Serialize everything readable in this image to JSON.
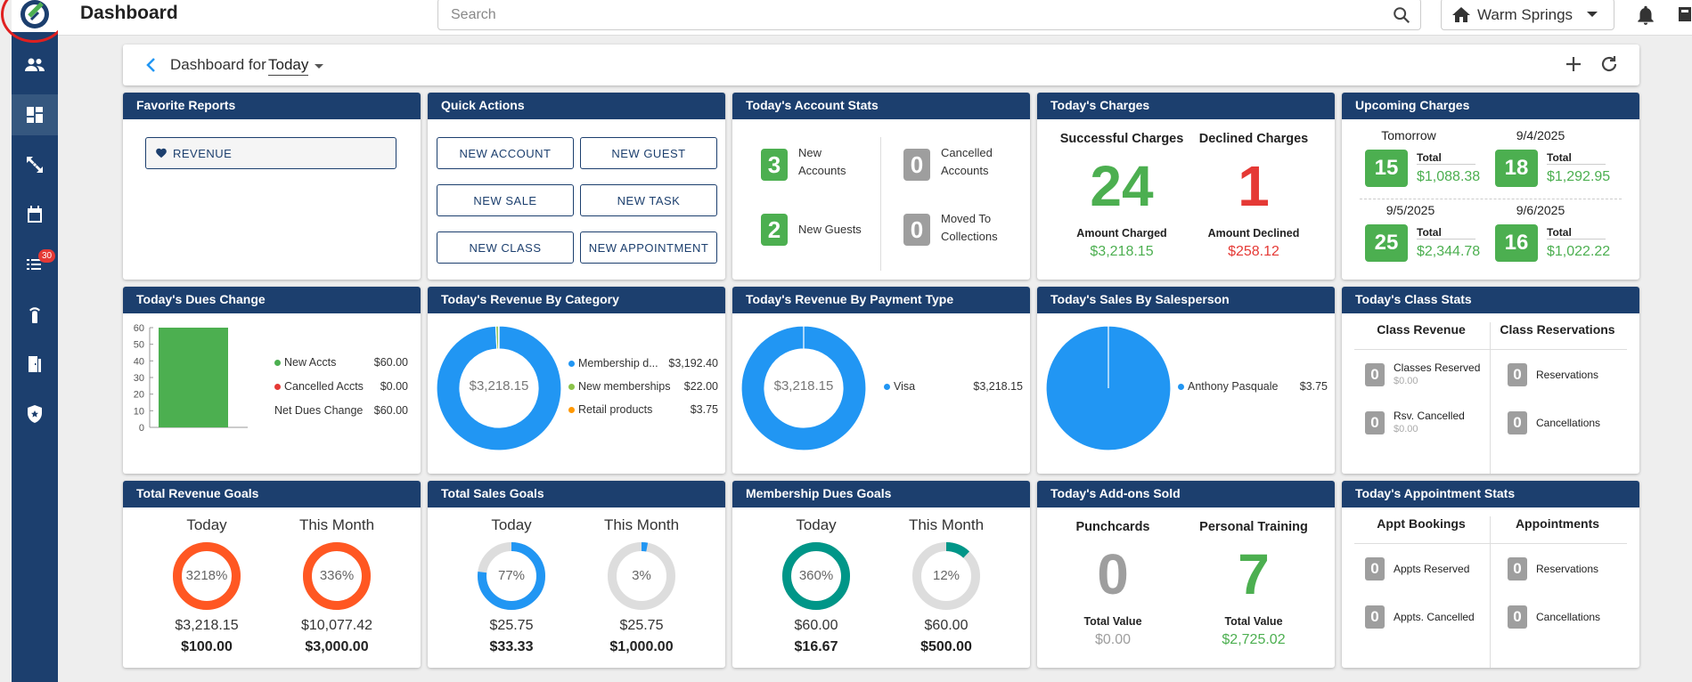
{
  "app": {
    "title": "Dashboard"
  },
  "search": {
    "placeholder": "Search"
  },
  "location": {
    "value": "Warm Springs"
  },
  "sidebar": {
    "badge": "30"
  },
  "subbar": {
    "prefix": "Dashboard for",
    "period": "Today"
  },
  "favorite_reports": {
    "title": "Favorite Reports",
    "items": [
      "REVENUE"
    ]
  },
  "quick_actions": {
    "title": "Quick Actions",
    "buttons": [
      "NEW ACCOUNT",
      "NEW GUEST",
      "NEW SALE",
      "NEW TASK",
      "NEW CLASS",
      "NEW APPOINTMENT"
    ]
  },
  "account_stats": {
    "title": "Today's Account Stats",
    "new_accounts": {
      "value": "3",
      "label1": "New",
      "label2": "Accounts"
    },
    "new_guests": {
      "value": "2",
      "label": "New Guests"
    },
    "cancelled": {
      "value": "0",
      "label1": "Cancelled",
      "label2": "Accounts"
    },
    "collections": {
      "value": "0",
      "label1": "Moved To",
      "label2": "Collections"
    }
  },
  "charges": {
    "title": "Today's Charges",
    "successful": {
      "label": "Successful Charges",
      "count": "24",
      "amount_label": "Amount Charged",
      "amount": "$3,218.15"
    },
    "declined": {
      "label": "Declined Charges",
      "count": "1",
      "amount_label": "Amount Declined",
      "amount": "$258.12"
    }
  },
  "upcoming": {
    "title": "Upcoming Charges",
    "items": [
      {
        "date": "Tomorrow",
        "count": "15",
        "total_label": "Total",
        "total": "$1,088.38"
      },
      {
        "date": "9/4/2025",
        "count": "18",
        "total_label": "Total",
        "total": "$1,292.95"
      },
      {
        "date": "9/5/2025",
        "count": "25",
        "total_label": "Total",
        "total": "$2,344.78"
      },
      {
        "date": "9/6/2025",
        "count": "16",
        "total_label": "Total",
        "total": "$1,022.22"
      }
    ]
  },
  "dues_change": {
    "title": "Today's Dues Change",
    "legend": [
      {
        "label": "New Accts",
        "value": "$60.00",
        "color": "#4caf50"
      },
      {
        "label": "Cancelled Accts",
        "value": "$0.00",
        "color": "#e53935"
      },
      {
        "label": "Net Dues Change",
        "value": "$60.00"
      }
    ]
  },
  "chart_data": [
    {
      "type": "bar",
      "categories": [
        "Net Dues Change"
      ],
      "values": [
        60
      ],
      "title": "Today's Dues Change",
      "xlabel": "",
      "ylabel": "",
      "ylim": [
        0,
        60
      ],
      "yticks": [
        "60",
        "50",
        "40",
        "30",
        "20",
        "10",
        "0"
      ],
      "color": "#4caf50"
    },
    {
      "type": "pie",
      "title": "Today's Revenue By Category",
      "center_label": "$3,218.15",
      "categories": [
        "Membership d...",
        "New memberships",
        "Retail products"
      ],
      "values": [
        3192.4,
        22.0,
        3.75
      ],
      "value_labels": [
        "$3,192.40",
        "$22.00",
        "$3.75"
      ],
      "colors": [
        "#2196f3",
        "#8bc34a",
        "#ff9800"
      ]
    },
    {
      "type": "pie",
      "title": "Today's Revenue By Payment Type",
      "center_label": "$3,218.15",
      "categories": [
        "Visa"
      ],
      "values": [
        3218.15
      ],
      "value_labels": [
        "$3,218.15"
      ],
      "colors": [
        "#2196f3"
      ]
    },
    {
      "type": "pie",
      "title": "Today's Sales By Salesperson",
      "categories": [
        "Anthony Pasquale"
      ],
      "values": [
        3.75
      ],
      "value_labels": [
        "$3.75"
      ],
      "colors": [
        "#2196f3"
      ]
    }
  ],
  "revenue_category": {
    "title": "Today's Revenue By Category"
  },
  "revenue_payment": {
    "title": "Today's Revenue By Payment Type"
  },
  "sales_person": {
    "title": "Today's Sales By Salesperson"
  },
  "class_stats": {
    "title": "Today's Class Stats",
    "col1": "Class Revenue",
    "col2": "Class Reservations",
    "reserved": {
      "value": "0",
      "label": "Classes Reserved",
      "amount": "$0.00"
    },
    "rsv_cancelled": {
      "value": "0",
      "label": "Rsv. Cancelled",
      "amount": "$0.00"
    },
    "reservations": {
      "value": "0",
      "label": "Reservations"
    },
    "cancellations": {
      "value": "0",
      "label": "Cancellations"
    }
  },
  "revenue_goals": {
    "title": "Total Revenue Goals",
    "today": {
      "label": "Today",
      "pct": "3218%",
      "fraction": 1.0,
      "amount": "$3,218.15",
      "target": "$100.00",
      "color": "#ff5722"
    },
    "month": {
      "label": "This Month",
      "pct": "336%",
      "fraction": 1.0,
      "amount": "$10,077.42",
      "target": "$3,000.00",
      "color": "#ff5722"
    }
  },
  "sales_goals": {
    "title": "Total Sales Goals",
    "today": {
      "label": "Today",
      "pct": "77%",
      "fraction": 0.77,
      "amount": "$25.75",
      "target": "$33.33",
      "color": "#2196f3"
    },
    "month": {
      "label": "This Month",
      "pct": "3%",
      "fraction": 0.03,
      "amount": "$25.75",
      "target": "$1,000.00",
      "color": "#2196f3"
    }
  },
  "dues_goals": {
    "title": "Membership Dues Goals",
    "today": {
      "label": "Today",
      "pct": "360%",
      "fraction": 1.0,
      "amount": "$60.00",
      "target": "$16.67",
      "color": "#009688"
    },
    "month": {
      "label": "This Month",
      "pct": "12%",
      "fraction": 0.12,
      "amount": "$60.00",
      "target": "$500.00",
      "color": "#009688"
    }
  },
  "addons": {
    "title": "Today's Add-ons Sold",
    "punchcards": {
      "label": "Punchcards",
      "count": "0",
      "value_label": "Total Value",
      "value": "$0.00"
    },
    "training": {
      "label": "Personal Training",
      "count": "7",
      "value_label": "Total Value",
      "value": "$2,725.02"
    }
  },
  "appt_stats": {
    "title": "Today's Appointment Stats",
    "col1": "Appt Bookings",
    "col2": "Appointments",
    "reserved": {
      "value": "0",
      "label": "Appts Reserved"
    },
    "cancelled": {
      "value": "0",
      "label": "Appts. Cancelled"
    },
    "reservations": {
      "value": "0",
      "label": "Reservations"
    },
    "cancellations": {
      "value": "0",
      "label": "Cancellations"
    }
  }
}
